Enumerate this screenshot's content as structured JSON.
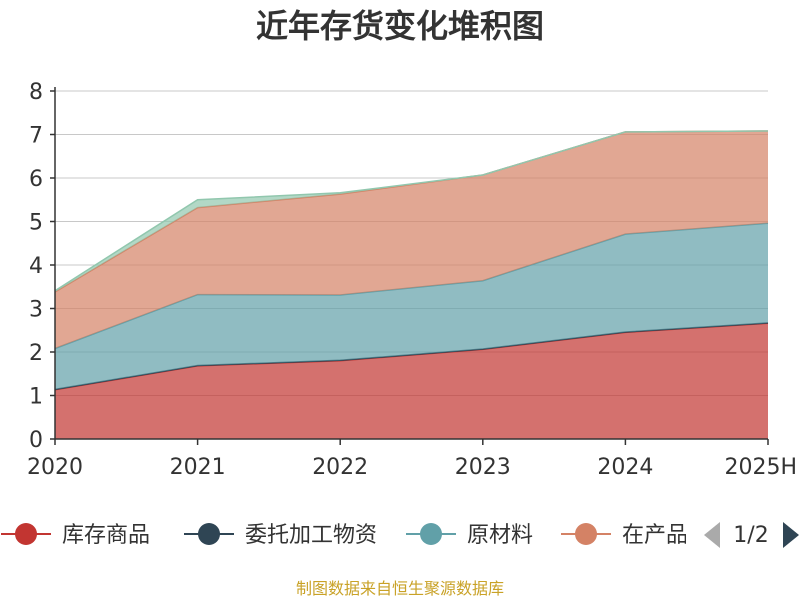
{
  "chart_data": {
    "type": "area",
    "stacked": true,
    "title": "近年存货变化堆积图",
    "ylabel": "",
    "categories": [
      "2020",
      "2021",
      "2022",
      "2023",
      "2024",
      "2025H"
    ],
    "ylim": [
      0,
      8
    ],
    "yticks": [
      "0",
      "1",
      "2",
      "3",
      "4",
      "5",
      "6",
      "7",
      "8"
    ],
    "grid": true,
    "legend_position": "bottom",
    "series": [
      {
        "name": "库存商品",
        "values": [
          1.13,
          1.68,
          1.8,
          2.06,
          2.45,
          2.66
        ],
        "color": "#c23531"
      },
      {
        "name": "委托加工物资",
        "values": [
          0.01,
          0.01,
          0.01,
          0.01,
          0.01,
          0.01
        ],
        "color": "#2f4554"
      },
      {
        "name": "原材料",
        "values": [
          0.94,
          1.63,
          1.5,
          1.57,
          2.25,
          2.29
        ],
        "color": "#61a0a8"
      },
      {
        "name": "在产品",
        "values": [
          1.3,
          2.0,
          2.32,
          2.43,
          2.35,
          2.12
        ],
        "color": "#d48265"
      },
      {
        "name": "",
        "values": [
          0.03,
          0.18,
          0.03,
          0.0,
          0.0,
          0.0
        ],
        "color": "#91c7ae"
      }
    ],
    "legend_items": [
      "库存商品",
      "委托加工物资",
      "原材料",
      "在产品"
    ],
    "legend_page": "1/2"
  },
  "source": "制图数据来自恒生聚源数据库"
}
